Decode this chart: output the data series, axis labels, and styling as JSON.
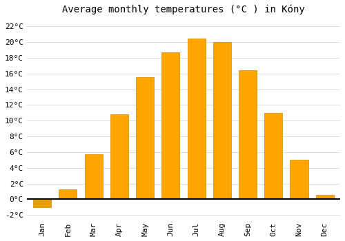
{
  "title": "Average monthly temperatures (°C ) in Kóny",
  "months": [
    "Jan",
    "Feb",
    "Mar",
    "Apr",
    "May",
    "Jun",
    "Jul",
    "Aug",
    "Sep",
    "Oct",
    "Nov",
    "Dec"
  ],
  "temperatures": [
    -1.0,
    1.3,
    5.7,
    10.8,
    15.5,
    18.7,
    20.4,
    20.0,
    16.4,
    11.0,
    5.0,
    0.6
  ],
  "bar_color": "#FFA500",
  "bar_edge_color": "#CC8800",
  "background_color": "#ffffff",
  "grid_color": "#dddddd",
  "ylim": [
    -2.5,
    23.0
  ],
  "yticks": [
    -2,
    0,
    2,
    4,
    6,
    8,
    10,
    12,
    14,
    16,
    18,
    20,
    22
  ],
  "title_fontsize": 10,
  "tick_fontsize": 8,
  "bar_width": 0.7
}
